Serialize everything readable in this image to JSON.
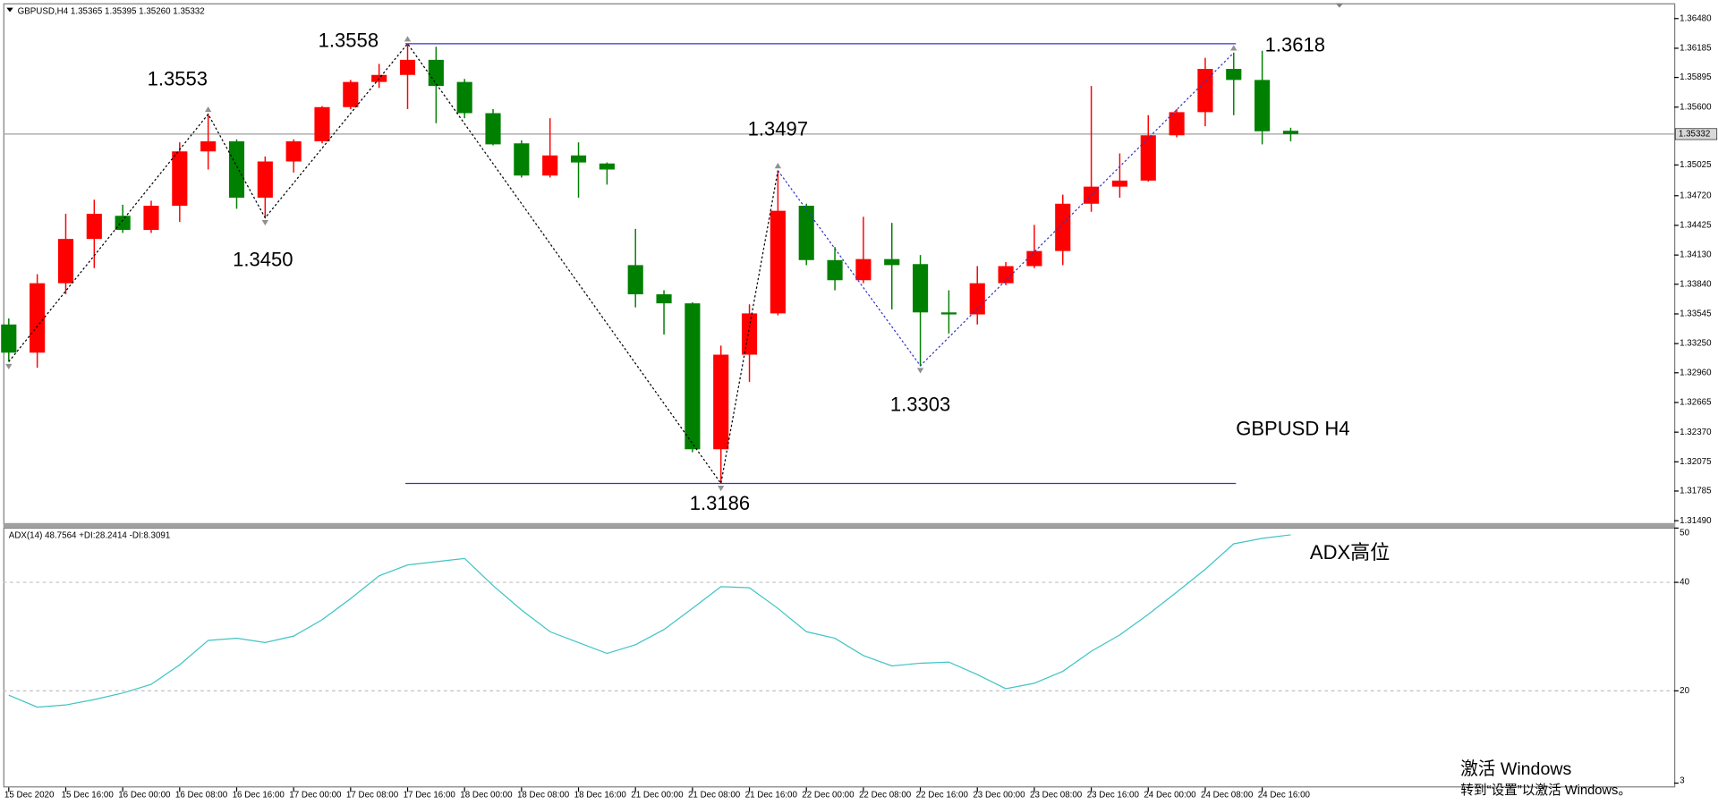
{
  "chart_data": [
    {
      "type": "candlestick",
      "title": "GBPUSD,H4",
      "ohlc_labels": [
        "1.35365",
        "1.35395",
        "1.35260",
        "1.35332"
      ],
      "categories": [
        "15 Dec 2020",
        null,
        "15 Dec 16:00",
        null,
        "16 Dec 00:00",
        null,
        "16 Dec 08:00",
        null,
        "16 Dec 16:00",
        null,
        "17 Dec 00:00",
        null,
        "17 Dec 08:00",
        null,
        "17 Dec 16:00",
        null,
        "18 Dec 00:00",
        null,
        "18 Dec 08:00",
        null,
        "18 Dec 16:00",
        null,
        "21 Dec 00:00",
        null,
        "21 Dec 08:00",
        null,
        "21 Dec 16:00",
        null,
        "22 Dec 00:00",
        null,
        "22 Dec 08:00",
        null,
        "22 Dec 16:00",
        null,
        "23 Dec 00:00",
        null,
        "23 Dec 08:00",
        null,
        "23 Dec 16:00",
        null,
        "24 Dec 00:00",
        null,
        "24 Dec 08:00",
        null,
        "24 Dec 16:00",
        null
      ],
      "open": [
        1.3344,
        1.3316,
        1.3385,
        1.3429,
        1.3452,
        1.3438,
        1.3462,
        1.3516,
        1.3526,
        1.347,
        1.3506,
        1.3526,
        1.356,
        1.3585,
        1.3592,
        1.3607,
        1.3585,
        1.3554,
        1.3524,
        1.3492,
        1.3512,
        1.3504,
        1.3403,
        1.3374,
        1.3365,
        1.322,
        1.3314,
        1.3355,
        1.3462,
        1.3408,
        1.3388,
        1.3409,
        1.3404,
        1.3356,
        1.3354,
        1.3385,
        1.3402,
        1.3417,
        1.3464,
        1.3481,
        1.3487,
        1.3532,
        1.3555,
        1.3598,
        1.3587,
        1.35365
      ],
      "high": [
        1.335,
        1.3394,
        1.3454,
        1.3468,
        1.3463,
        1.3467,
        1.3525,
        1.3553,
        1.3528,
        1.3511,
        1.3528,
        1.3561,
        1.3587,
        1.3603,
        1.3623,
        1.362,
        1.3588,
        1.3558,
        1.3527,
        1.3549,
        1.3525,
        1.3505,
        1.3439,
        1.3378,
        1.3366,
        1.3323,
        1.3364,
        1.3497,
        1.3464,
        1.3421,
        1.3451,
        1.3445,
        1.3413,
        1.3378,
        1.3402,
        1.3406,
        1.3443,
        1.3473,
        1.3581,
        1.3514,
        1.3552,
        1.3558,
        1.3609,
        1.3614,
        1.3616,
        1.35395
      ],
      "low": [
        1.3307,
        1.3301,
        1.3374,
        1.34,
        1.3435,
        1.3435,
        1.3446,
        1.3498,
        1.3459,
        1.345,
        1.3495,
        1.3524,
        1.3558,
        1.3579,
        1.3558,
        1.3544,
        1.3549,
        1.3522,
        1.349,
        1.349,
        1.347,
        1.3483,
        1.3361,
        1.3334,
        1.3217,
        1.3186,
        1.3287,
        1.3353,
        1.3403,
        1.3378,
        1.3385,
        1.3359,
        1.3303,
        1.3335,
        1.3344,
        1.3383,
        1.34,
        1.3403,
        1.3456,
        1.347,
        1.3486,
        1.353,
        1.3541,
        1.3552,
        1.3523,
        1.3526
      ],
      "close": [
        1.3316,
        1.3385,
        1.3429,
        1.3454,
        1.3438,
        1.3462,
        1.3516,
        1.3526,
        1.347,
        1.3506,
        1.3526,
        1.356,
        1.3585,
        1.3592,
        1.3607,
        1.3581,
        1.3554,
        1.3523,
        1.3492,
        1.3512,
        1.3505,
        1.3498,
        1.3374,
        1.3365,
        1.322,
        1.3314,
        1.3355,
        1.3457,
        1.3408,
        1.3388,
        1.3409,
        1.3403,
        1.3356,
        1.3354,
        1.3385,
        1.3402,
        1.3417,
        1.3464,
        1.3481,
        1.3487,
        1.3532,
        1.3555,
        1.3598,
        1.3587,
        1.3536,
        1.35332
      ],
      "up_color": "#ff0000",
      "down_color": "#008000",
      "ylim": [
        1.31455,
        1.3661
      ],
      "yticks": [
        {
          "value": 1.3648,
          "label": "1.36480"
        },
        1.36185,
        1.35895,
        {
          "value": 1.356,
          "label": "1.35600"
        },
        1.35025,
        {
          "value": 1.3472,
          "label": "1.34720"
        },
        1.34425,
        {
          "value": 1.3413,
          "label": "1.34130"
        },
        {
          "value": 1.3384,
          "label": "1.33840"
        },
        1.33545,
        {
          "value": 1.3325,
          "label": "1.33250"
        },
        {
          "value": 1.3296,
          "label": "1.32960"
        },
        1.32665,
        {
          "value": 1.3237,
          "label": "1.32370"
        },
        1.32075,
        1.31785,
        {
          "value": 1.3149,
          "label": "1.31490"
        }
      ],
      "levels": [
        1.3623,
        1.3186
      ],
      "level_color": "#3333cc",
      "annotations": [
        "1.3553",
        "1.3558",
        "1.3450",
        "1.3497",
        "1.3186",
        "1.3303",
        "1.3618",
        "GBPUSD  H4"
      ],
      "annotation_color": "#ff0000"
    },
    {
      "type": "line",
      "name": "ADX(14)",
      "values": [
        19.2,
        17.0,
        17.4,
        18.4,
        19.6,
        21.2,
        24.8,
        29.3,
        29.7,
        28.9,
        30.1,
        33.1,
        37.0,
        41.2,
        43.2,
        43.8,
        44.4,
        39.4,
        34.9,
        30.9,
        28.9,
        26.9,
        28.5,
        31.3,
        35.2,
        39.2,
        39.0,
        35.2,
        30.9,
        29.7,
        26.5,
        24.6,
        25.1,
        25.3,
        23.0,
        20.4,
        21.4,
        23.6,
        27.3,
        30.3,
        34.1,
        38.2,
        42.4,
        47.1,
        48.1,
        48.7564
      ],
      "color": "#3fc4c4",
      "plus_di_label": "+DI:",
      "plus_di": 28.2414,
      "minus_di_label": "-DI:",
      "minus_di": 8.3091,
      "ylim": [
        2.2,
        50.1
      ],
      "yticks": [
        3,
        20,
        40,
        50
      ],
      "levels": [
        20,
        40
      ],
      "annotation": "ADX高位"
    }
  ],
  "watermark": {
    "title": "激活 Windows",
    "subtitle": "转到“设置”以激活 Windows。"
  }
}
